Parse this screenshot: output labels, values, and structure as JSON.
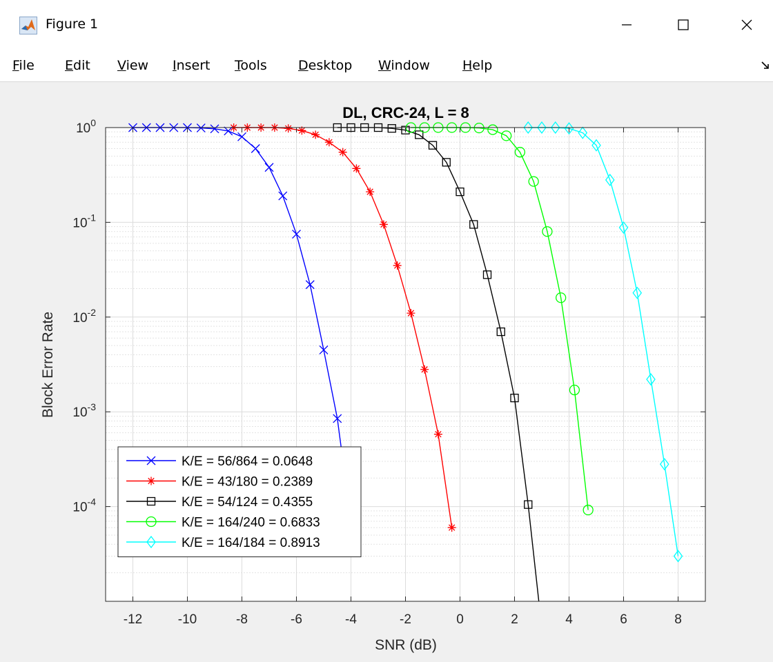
{
  "window": {
    "title": "Figure 1",
    "icon": "matlab-logo-icon",
    "controls": [
      "minimize-icon",
      "maximize-icon",
      "close-icon"
    ]
  },
  "menu": {
    "items": [
      {
        "label": "File",
        "mnemonic": "F"
      },
      {
        "label": "Edit",
        "mnemonic": "E"
      },
      {
        "label": "View",
        "mnemonic": "V"
      },
      {
        "label": "Insert",
        "mnemonic": "I"
      },
      {
        "label": "Tools",
        "mnemonic": "T"
      },
      {
        "label": "Desktop",
        "mnemonic": "D"
      },
      {
        "label": "Window",
        "mnemonic": "W"
      },
      {
        "label": "Help",
        "mnemonic": "H"
      }
    ],
    "overflow_icon": "dock-arrow-icon"
  },
  "chart_data": {
    "type": "line",
    "title": "DL, CRC-24, L = 8",
    "xlabel": "SNR (dB)",
    "ylabel": "Block Error Rate",
    "xscale": "linear",
    "yscale": "log",
    "xlim": [
      -13,
      9
    ],
    "ylim": [
      1e-05,
      1
    ],
    "xticks": [
      -12,
      -10,
      -8,
      -6,
      -4,
      -2,
      0,
      2,
      4,
      6,
      8
    ],
    "yticks": [
      0.0001,
      0.001,
      0.01,
      0.1,
      1
    ],
    "ytick_labels": [
      "10^-4",
      "10^-3",
      "10^-2",
      "10^-1",
      "10^0"
    ],
    "grid": true,
    "minor_grid": true,
    "legend_position": "bottom-left",
    "series": [
      {
        "name": "K/E = 56/864 = 0.0648",
        "color": "#0000ff",
        "marker": "x",
        "x": [
          -12,
          -11.5,
          -11,
          -10.5,
          -10,
          -9.5,
          -9,
          -8.5,
          -8,
          -7.5,
          -7,
          -6.5,
          -6,
          -5.5,
          -5,
          -4.5,
          -4
        ],
        "y": [
          1,
          1,
          1,
          1,
          1,
          0.99,
          0.97,
          0.92,
          0.8,
          0.6,
          0.38,
          0.19,
          0.075,
          0.022,
          0.0045,
          0.00085,
          7e-05
        ]
      },
      {
        "name": "K/E = 43/180 = 0.2389",
        "color": "#ff0000",
        "marker": "*",
        "x": [
          -8.3,
          -7.8,
          -7.3,
          -6.8,
          -6.3,
          -5.8,
          -5.3,
          -4.8,
          -4.3,
          -3.8,
          -3.3,
          -2.8,
          -2.3,
          -1.8,
          -1.3,
          -0.8,
          -0.3
        ],
        "y": [
          1,
          1,
          1,
          1,
          0.98,
          0.93,
          0.84,
          0.7,
          0.55,
          0.37,
          0.21,
          0.095,
          0.035,
          0.011,
          0.0028,
          0.00058,
          6e-05
        ]
      },
      {
        "name": "K/E = 54/124 = 0.4355",
        "color": "#000000",
        "marker": "square",
        "x": [
          -4.5,
          -4,
          -3.5,
          -3,
          -2.5,
          -2,
          -1.5,
          -1,
          -0.5,
          0,
          0.5,
          1,
          1.5,
          2,
          2.5,
          3
        ],
        "y": [
          1,
          1,
          1,
          1,
          0.98,
          0.94,
          0.84,
          0.65,
          0.43,
          0.21,
          0.095,
          0.028,
          0.007,
          0.0014,
          0.000105,
          5.2e-06
        ]
      },
      {
        "name": "K/E = 164/240 = 0.6833",
        "color": "#00ff00",
        "marker": "circle",
        "x": [
          -1.8,
          -1.3,
          -0.8,
          -0.3,
          0.2,
          0.7,
          1.2,
          1.7,
          2.2,
          2.7,
          3.2,
          3.7,
          4.2,
          4.7
        ],
        "y": [
          1,
          1,
          1,
          1,
          1,
          0.99,
          0.95,
          0.82,
          0.55,
          0.27,
          0.08,
          0.016,
          0.0017,
          9.2e-05
        ]
      },
      {
        "name": "K/E = 164/184 = 0.8913",
        "color": "#00ffff",
        "marker": "diamond",
        "x": [
          2.5,
          3,
          3.5,
          4,
          4.5,
          5,
          5.5,
          6,
          6.5,
          7,
          7.5,
          8
        ],
        "y": [
          1,
          1,
          1,
          0.98,
          0.88,
          0.65,
          0.28,
          0.088,
          0.018,
          0.0022,
          0.00028,
          3e-05
        ]
      }
    ]
  }
}
